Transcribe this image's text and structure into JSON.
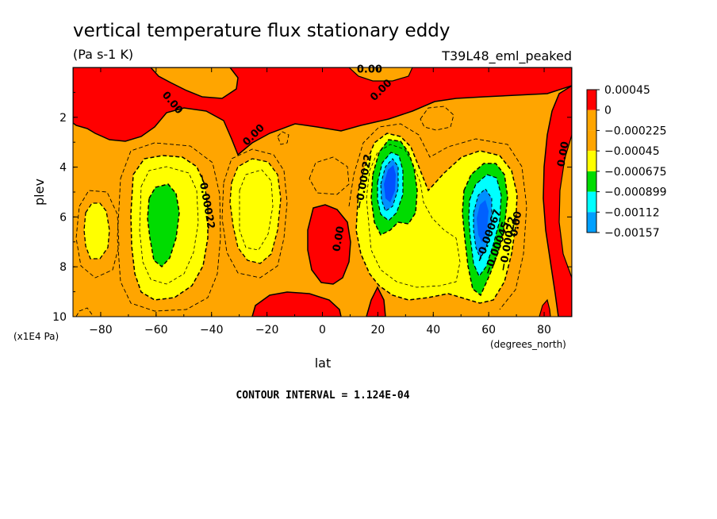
{
  "chart_data": {
    "type": "contour",
    "title": "vertical temperature flux stationary eddy",
    "units": "(Pa s-1 K)",
    "experiment": "T39L48_eml_peaked",
    "xlabel": "lat",
    "x_units": "(degrees_north)",
    "ylabel": "plev",
    "y_units": "(x1E4 Pa)",
    "xlim": [
      -90,
      90
    ],
    "ylim": [
      10,
      0
    ],
    "x_ticks": [
      -80,
      -60,
      -40,
      -20,
      0,
      20,
      40,
      60,
      80
    ],
    "y_ticks": [
      2,
      4,
      6,
      8,
      10
    ],
    "contour_interval_text": "CONTOUR INTERVAL = 1.124E-04",
    "colorbar": {
      "labels": [
        "0.00045",
        "0",
        "-0.000225",
        "-0.00045",
        "-0.000675",
        "-0.000899",
        "-0.00112",
        "-0.00157"
      ],
      "colors": [
        "#ff0000",
        "#ffa500",
        "#ffa500",
        "#ffff00",
        "#00dc00",
        "#00ffff",
        "#00a0ff",
        "#0050ff"
      ]
    },
    "contour_labels": [
      {
        "text": "0.00",
        "lat": -55,
        "p": 1.5,
        "rot": 50
      },
      {
        "text": "0.00",
        "lat": 17,
        "p": 0.2,
        "rot": 0
      },
      {
        "text": "0.00",
        "lat": 22,
        "p": 1.0,
        "rot": -45
      },
      {
        "text": "0.00",
        "lat": -24,
        "p": 2.8,
        "rot": -45
      },
      {
        "text": "-0.00022",
        "lat": -43,
        "p": 5.4,
        "rot": 80
      },
      {
        "text": "0.00",
        "lat": 7,
        "p": 6.9,
        "rot": -80
      },
      {
        "text": "-0.00022",
        "lat": 16,
        "p": 4.6,
        "rot": -80
      },
      {
        "text": "0.00",
        "lat": 88,
        "p": 3.5,
        "rot": -80
      },
      {
        "text": "0.00",
        "lat": 71,
        "p": 6.3,
        "rot": -80
      },
      {
        "text": "-0.00067",
        "lat": 61,
        "p": 6.8,
        "rot": -70
      },
      {
        "text": "-0.00045",
        "lat": 64,
        "p": 7.3,
        "rot": -70
      },
      {
        "text": "-0.00022",
        "lat": 68,
        "p": 7.1,
        "rot": -80
      }
    ]
  }
}
